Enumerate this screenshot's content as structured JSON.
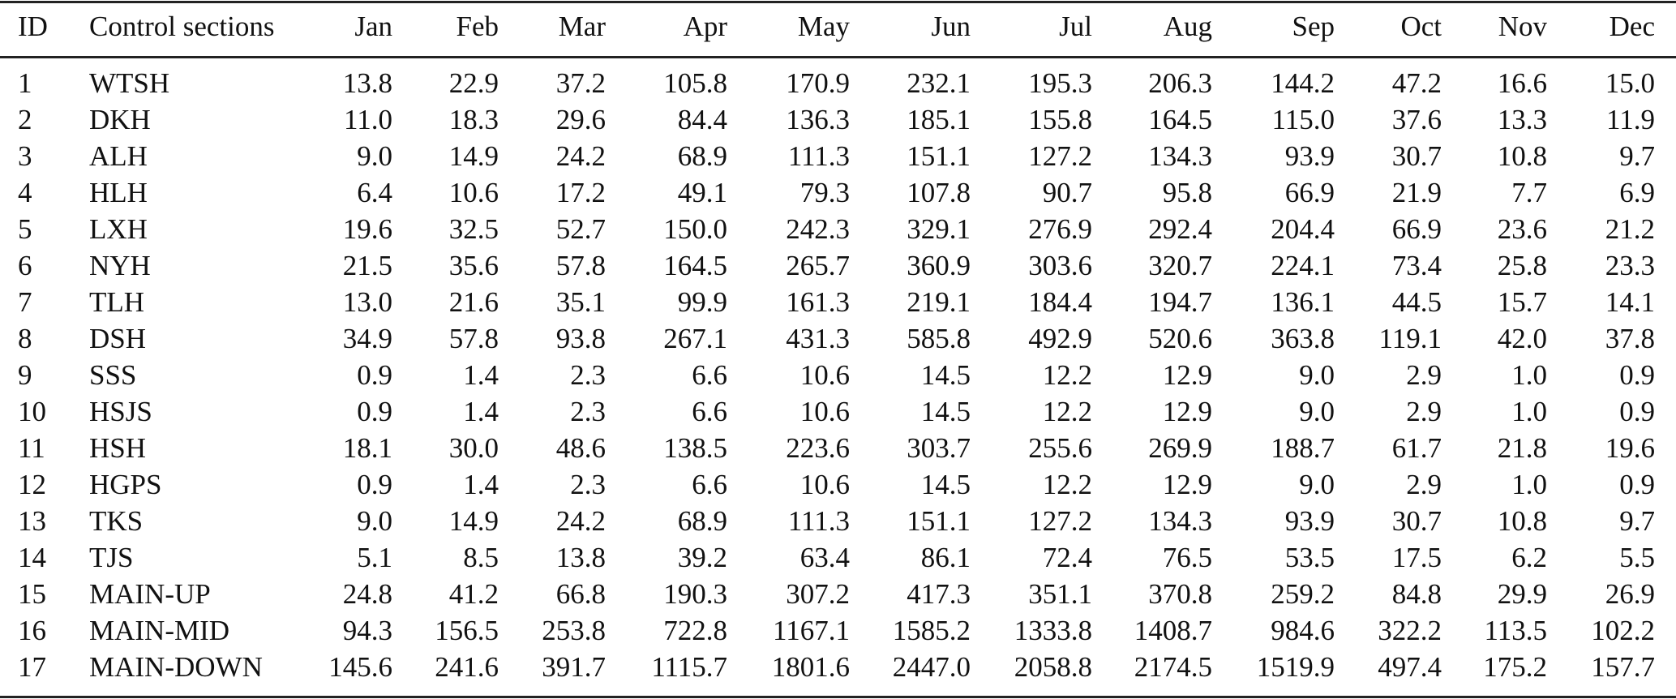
{
  "table": {
    "headers": [
      "ID",
      "Control sections",
      "Jan",
      "Feb",
      "Mar",
      "Apr",
      "May",
      "Jun",
      "Jul",
      "Aug",
      "Sep",
      "Oct",
      "Nov",
      "Dec"
    ],
    "rows": [
      [
        "1",
        "WTSH",
        "13.8",
        "22.9",
        "37.2",
        "105.8",
        "170.9",
        "232.1",
        "195.3",
        "206.3",
        "144.2",
        "47.2",
        "16.6",
        "15.0"
      ],
      [
        "2",
        "DKH",
        "11.0",
        "18.3",
        "29.6",
        "84.4",
        "136.3",
        "185.1",
        "155.8",
        "164.5",
        "115.0",
        "37.6",
        "13.3",
        "11.9"
      ],
      [
        "3",
        "ALH",
        "9.0",
        "14.9",
        "24.2",
        "68.9",
        "111.3",
        "151.1",
        "127.2",
        "134.3",
        "93.9",
        "30.7",
        "10.8",
        "9.7"
      ],
      [
        "4",
        "HLH",
        "6.4",
        "10.6",
        "17.2",
        "49.1",
        "79.3",
        "107.8",
        "90.7",
        "95.8",
        "66.9",
        "21.9",
        "7.7",
        "6.9"
      ],
      [
        "5",
        "LXH",
        "19.6",
        "32.5",
        "52.7",
        "150.0",
        "242.3",
        "329.1",
        "276.9",
        "292.4",
        "204.4",
        "66.9",
        "23.6",
        "21.2"
      ],
      [
        "6",
        "NYH",
        "21.5",
        "35.6",
        "57.8",
        "164.5",
        "265.7",
        "360.9",
        "303.6",
        "320.7",
        "224.1",
        "73.4",
        "25.8",
        "23.3"
      ],
      [
        "7",
        "TLH",
        "13.0",
        "21.6",
        "35.1",
        "99.9",
        "161.3",
        "219.1",
        "184.4",
        "194.7",
        "136.1",
        "44.5",
        "15.7",
        "14.1"
      ],
      [
        "8",
        "DSH",
        "34.9",
        "57.8",
        "93.8",
        "267.1",
        "431.3",
        "585.8",
        "492.9",
        "520.6",
        "363.8",
        "119.1",
        "42.0",
        "37.8"
      ],
      [
        "9",
        "SSS",
        "0.9",
        "1.4",
        "2.3",
        "6.6",
        "10.6",
        "14.5",
        "12.2",
        "12.9",
        "9.0",
        "2.9",
        "1.0",
        "0.9"
      ],
      [
        "10",
        "HSJS",
        "0.9",
        "1.4",
        "2.3",
        "6.6",
        "10.6",
        "14.5",
        "12.2",
        "12.9",
        "9.0",
        "2.9",
        "1.0",
        "0.9"
      ],
      [
        "11",
        "HSH",
        "18.1",
        "30.0",
        "48.6",
        "138.5",
        "223.6",
        "303.7",
        "255.6",
        "269.9",
        "188.7",
        "61.7",
        "21.8",
        "19.6"
      ],
      [
        "12",
        "HGPS",
        "0.9",
        "1.4",
        "2.3",
        "6.6",
        "10.6",
        "14.5",
        "12.2",
        "12.9",
        "9.0",
        "2.9",
        "1.0",
        "0.9"
      ],
      [
        "13",
        "TKS",
        "9.0",
        "14.9",
        "24.2",
        "68.9",
        "111.3",
        "151.1",
        "127.2",
        "134.3",
        "93.9",
        "30.7",
        "10.8",
        "9.7"
      ],
      [
        "14",
        "TJS",
        "5.1",
        "8.5",
        "13.8",
        "39.2",
        "63.4",
        "86.1",
        "72.4",
        "76.5",
        "53.5",
        "17.5",
        "6.2",
        "5.5"
      ],
      [
        "15",
        "MAIN-UP",
        "24.8",
        "41.2",
        "66.8",
        "190.3",
        "307.2",
        "417.3",
        "351.1",
        "370.8",
        "259.2",
        "84.8",
        "29.9",
        "26.9"
      ],
      [
        "16",
        "MAIN-MID",
        "94.3",
        "156.5",
        "253.8",
        "722.8",
        "1167.1",
        "1585.2",
        "1333.8",
        "1408.7",
        "984.6",
        "322.2",
        "113.5",
        "102.2"
      ],
      [
        "17",
        "MAIN-DOWN",
        "145.6",
        "241.6",
        "391.7",
        "1115.7",
        "1801.6",
        "2447.0",
        "2058.8",
        "2174.5",
        "1519.9",
        "497.4",
        "175.2",
        "157.7"
      ]
    ]
  }
}
